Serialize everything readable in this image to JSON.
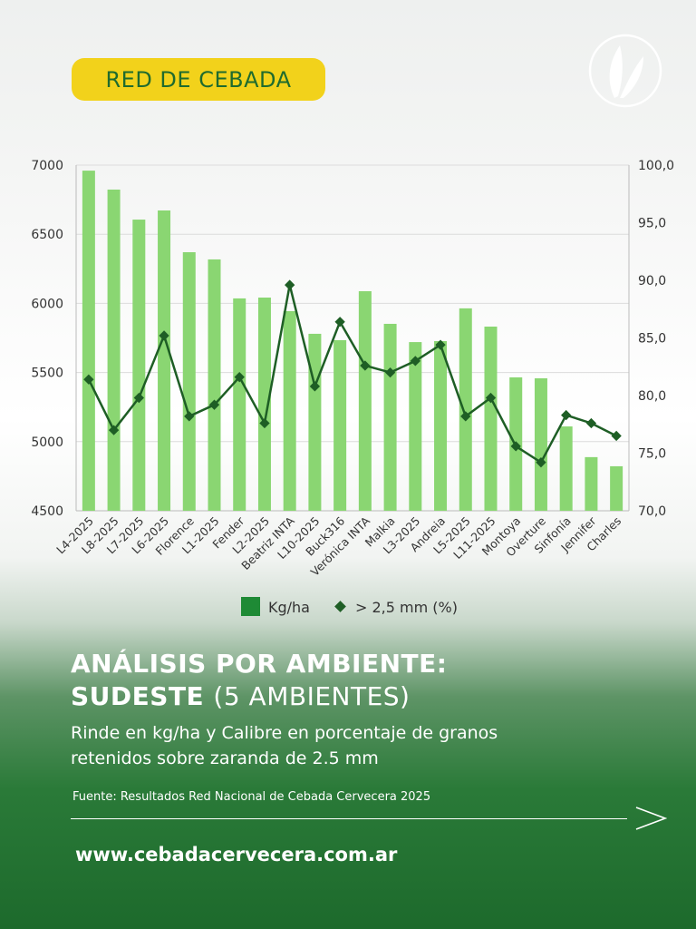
{
  "badge": "RED DE CEBADA",
  "title_bold": "ANÁLISIS POR AMBIENTE:",
  "title_line2_bold": "SUDESTE",
  "title_line2_light": "(5 AMBIENTES)",
  "subtitle_line1": "Rinde en kg/ha y Calibre en porcentaje de granos",
  "subtitle_line2": "retenidos sobre zaranda de 2.5 mm",
  "source": "Fuente: Resultados Red Nacional de Cebada Cervecera 2025",
  "url": "www.cebadacervecera.com.ar",
  "icons": {
    "logo": "wheat-icon",
    "next": "arrow-right-icon"
  },
  "colors": {
    "bar": "#8ad672",
    "line": "#1e5e25",
    "legend_bar": "#1e8a35",
    "badge": "#f2d21b",
    "bottom": "#1d6a2c"
  },
  "chart_data": {
    "type": "bar+line",
    "categories": [
      "L4-2025",
      "L8-2025",
      "L7-2025",
      "L6-2025",
      "Florence",
      "L1-2025",
      "Fender",
      "L2-2025",
      "Beatriz INTA",
      "L10-2025",
      "Buck316",
      "Verónica INTA",
      "Malkia",
      "L3-2025",
      "Andreia",
      "L5-2025",
      "L11-2025",
      "Montoya",
      "Overture",
      "Sinfonía",
      "Jennifer",
      "Charles"
    ],
    "series": [
      {
        "name": "Kg/ha",
        "type": "bar",
        "axis": "left",
        "values": [
          6960,
          6823,
          6606,
          6672,
          6370,
          6318,
          6036,
          6042,
          5944,
          5780,
          5734,
          6088,
          5852,
          5720,
          5727,
          5964,
          5832,
          5465,
          5458,
          5110,
          4888,
          4822
        ]
      },
      {
        "name": "> 2,5 mm (%)",
        "type": "line",
        "axis": "right",
        "values": [
          81.4,
          77.0,
          79.8,
          85.2,
          78.2,
          79.2,
          81.6,
          77.6,
          89.6,
          80.8,
          86.4,
          82.6,
          82.0,
          83.0,
          84.4,
          78.2,
          79.8,
          75.6,
          74.2,
          78.3,
          77.6,
          76.5
        ]
      }
    ],
    "y_left": {
      "range": [
        4500,
        7000
      ],
      "ticks": [
        "4500",
        "5000",
        "5500",
        "6000",
        "6500",
        "7000"
      ]
    },
    "y_right": {
      "range": [
        70,
        100
      ],
      "ticks": [
        "70,0",
        "75,0",
        "80,0",
        "85,0",
        "90,0",
        "95,0",
        "100,0"
      ]
    },
    "grid": true,
    "legend": "bottom"
  }
}
